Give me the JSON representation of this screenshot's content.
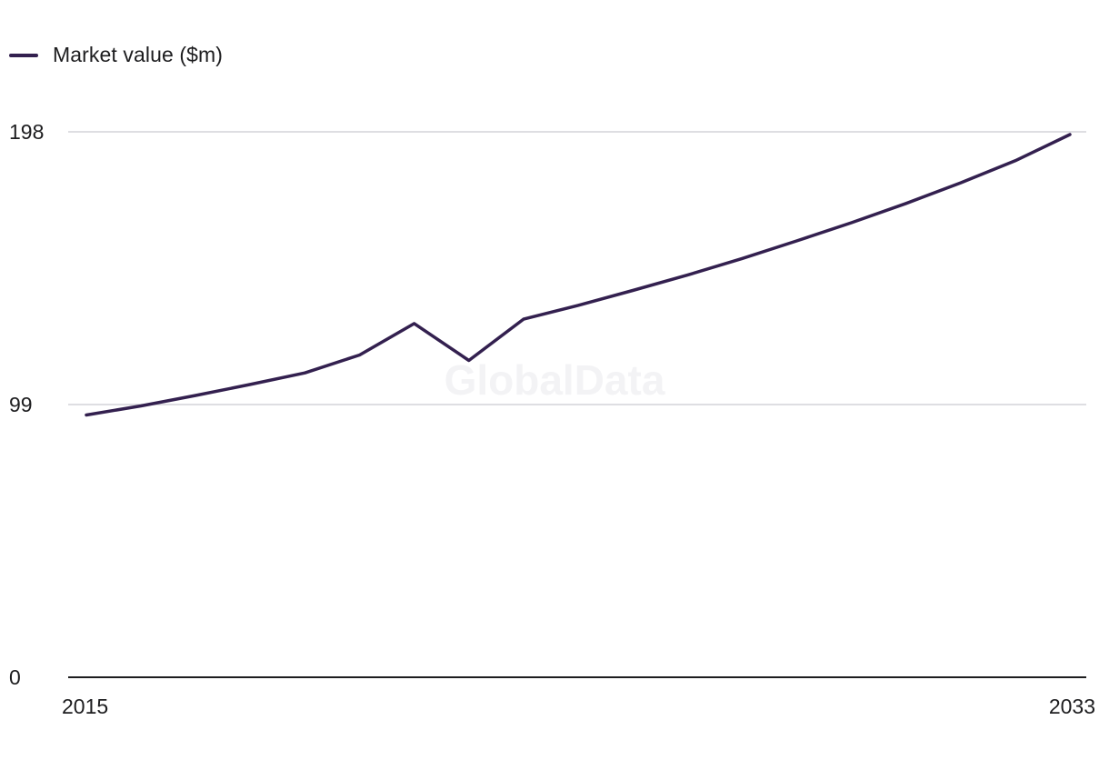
{
  "legend": {
    "label": "Market value ($m)"
  },
  "watermark": "GlobalData",
  "colors": {
    "line": "#33204f",
    "grid": "#d4d4d8",
    "axis": "#1d1d1f"
  },
  "chart_data": {
    "type": "line",
    "title": "",
    "xlabel": "",
    "ylabel": "",
    "x": [
      2015,
      2016,
      2017,
      2018,
      2019,
      2020,
      2021,
      2022,
      2023,
      2024,
      2025,
      2026,
      2027,
      2028,
      2029,
      2030,
      2031,
      2032,
      2033
    ],
    "xlim": [
      2015,
      2033
    ],
    "x_tick_labels": [
      "2015",
      "2033"
    ],
    "ylim": [
      0,
      198
    ],
    "y_ticks": [
      0,
      99,
      198
    ],
    "y_tick_labels": [
      "0",
      "99",
      "198"
    ],
    "grid": true,
    "legend_position": "top-left",
    "series": [
      {
        "name": "Market value ($m)",
        "values": [
          95.2,
          98.5,
          102.3,
          106.3,
          110.5,
          117.0,
          128.4,
          115.0,
          130.0,
          135.0,
          140.4,
          146.0,
          152.0,
          158.4,
          165.0,
          172.0,
          179.5,
          187.5,
          197.0
        ]
      }
    ]
  }
}
